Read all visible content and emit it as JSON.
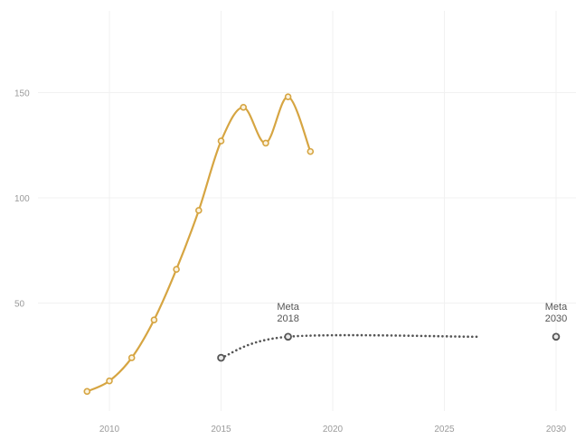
{
  "chart_data": {
    "type": "line",
    "title": "",
    "xlabel": "",
    "ylabel": "",
    "xlim": [
      2007,
      2031
    ],
    "ylim": [
      0,
      200
    ],
    "grid": true,
    "x_ticks": [
      2010,
      2015,
      2020,
      2025,
      2030
    ],
    "x_tick_labels": [
      "2010",
      "2015",
      "2020",
      "2025",
      "2030"
    ],
    "y_ticks": [
      50,
      100,
      150
    ],
    "y_tick_labels": [
      "50",
      "100",
      "150"
    ],
    "series": [
      {
        "color": "#d6a542",
        "line_style": "solid",
        "x": [
          2009,
          2010,
          2011,
          2012,
          2013,
          2014,
          2015,
          2016,
          2017,
          2018,
          2019
        ],
        "y": [
          8,
          13,
          24,
          42,
          66,
          94,
          127,
          143,
          126,
          148,
          122
        ]
      },
      {
        "color": "#555555",
        "line_style": "dotted",
        "x": [
          2015,
          2018,
          2026.5
        ],
        "y": [
          24,
          34,
          34
        ]
      },
      {
        "color": "#555555",
        "line_style": "point",
        "x": [
          2030
        ],
        "y": [
          34
        ]
      }
    ],
    "annotations": [
      {
        "line1": "Meta",
        "line2": "2018",
        "x": 2018,
        "y": 34
      },
      {
        "line1": "Meta",
        "line2": "2030",
        "x": 2030,
        "y": 34
      }
    ]
  }
}
